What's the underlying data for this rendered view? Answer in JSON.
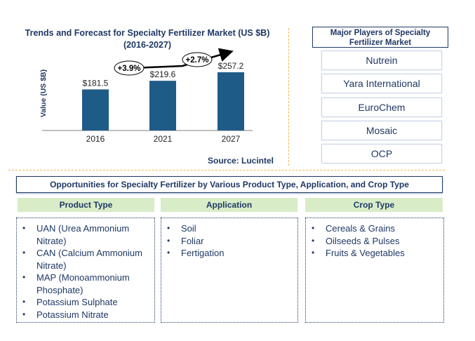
{
  "chart_data": {
    "type": "bar",
    "title": "Trends and Forecast for Specialty Fertilizer Market (US $B) (2016-2027)",
    "ylabel": "Value (US $B)",
    "xlabel": "",
    "categories": [
      "2016",
      "2021",
      "2027"
    ],
    "values": [
      181.5,
      219.6,
      257.2
    ],
    "value_labels": [
      "$181.5",
      "$219.6",
      "$257.2"
    ],
    "ylim": [
      0,
      270
    ],
    "bar_color": "#1f5b87",
    "grid": false,
    "growth_annotations": [
      {
        "label": "+3.9%",
        "from": "2016",
        "to": "2021"
      },
      {
        "label": "+2.7%",
        "from": "2021",
        "to": "2027"
      }
    ],
    "source": "Source: Lucintel"
  },
  "players": {
    "title": "Major Players of Specialty Fertilizer Market",
    "items": [
      "Nutrein",
      "Yara International",
      "EuroChem",
      "Mosaic",
      "OCP"
    ]
  },
  "opportunities": {
    "title": "Opportunities for Specialty Fertilizer by Various Product Type, Application, and Crop Type",
    "columns": [
      {
        "header": "Product Type",
        "items": [
          "UAN (Urea Ammonium Nitrate)",
          "CAN (Calcium Ammonium Nitrate)",
          "MAP (Monoammonium Phosphate)",
          "Potassium Sulphate",
          "Potassium Nitrate"
        ]
      },
      {
        "header": "Application",
        "items": [
          "Soil",
          "Foliar",
          "Fertigation"
        ]
      },
      {
        "header": "Crop Type",
        "items": [
          "Cereals & Grains",
          "Oilseeds & Pulses",
          "Fruits & Vegetables"
        ]
      }
    ]
  },
  "colors": {
    "title": "#1f3864",
    "accent_dash": "#f2b84b",
    "column_header_bg": "#d8ecc8"
  }
}
